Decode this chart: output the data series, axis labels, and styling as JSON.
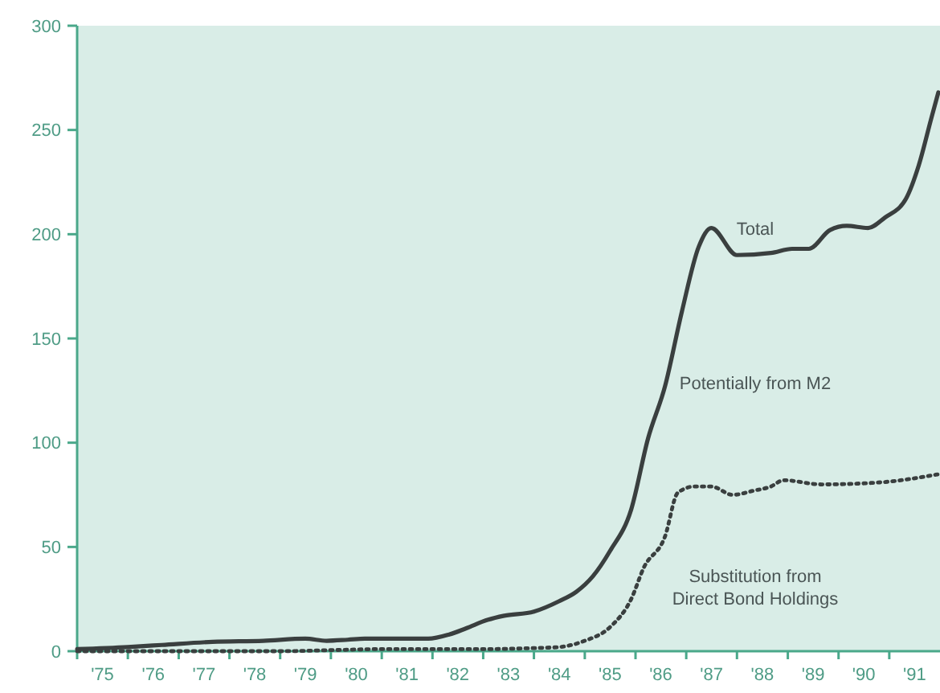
{
  "chart_data": {
    "type": "line",
    "xlim": [
      "1975",
      "1992"
    ],
    "ylim": [
      0,
      300
    ],
    "yticks": [
      0,
      50,
      100,
      150,
      200,
      250,
      300
    ],
    "xticks": [
      {
        "value": "1975",
        "label": null
      },
      {
        "value": "1975-07-02",
        "label": "'75"
      },
      {
        "value": "1976",
        "label": null
      },
      {
        "value": "1976-07-02",
        "label": "'76"
      },
      {
        "value": "1977",
        "label": null
      },
      {
        "value": "1977-07-02",
        "label": "'77"
      },
      {
        "value": "1978",
        "label": null
      },
      {
        "value": "1978-07-02",
        "label": "'78"
      },
      {
        "value": "1979",
        "label": null
      },
      {
        "value": "1979-07-02",
        "label": "'79"
      },
      {
        "value": "1980",
        "label": null
      },
      {
        "value": "1980-07-02",
        "label": "'80"
      },
      {
        "value": "1981",
        "label": null
      },
      {
        "value": "1981-07-02",
        "label": "'81"
      },
      {
        "value": "1982",
        "label": null
      },
      {
        "value": "1982-07-02",
        "label": "'82"
      },
      {
        "value": "1983",
        "label": null
      },
      {
        "value": "1983-07-02",
        "label": "'83"
      },
      {
        "value": "1984",
        "label": null
      },
      {
        "value": "1984-07-02",
        "label": "'84"
      },
      {
        "value": "1985",
        "label": null
      },
      {
        "value": "1985-07-02",
        "label": "'85"
      },
      {
        "value": "1986",
        "label": null
      },
      {
        "value": "1986-07-02",
        "label": "'86"
      },
      {
        "value": "1987",
        "label": null
      },
      {
        "value": "1987-07-02",
        "label": "'87"
      },
      {
        "value": "1988",
        "label": null
      },
      {
        "value": "1988-07-02",
        "label": "'88"
      },
      {
        "value": "1989",
        "label": null
      },
      {
        "value": "1989-07-02",
        "label": "'89"
      },
      {
        "value": "1990",
        "label": null
      },
      {
        "value": "1990-07-02",
        "label": "'90"
      },
      {
        "value": "1991",
        "label": null
      },
      {
        "value": "1991-07-02",
        "label": "'91"
      }
    ],
    "grid": false,
    "legend": false,
    "series": [
      {
        "name": "Total",
        "color": "#3a3f3f",
        "line_style": "solid",
        "x": [
          "1975-01",
          "1976-01",
          "1976-09",
          "1977-09",
          "1978-09",
          "1979-07",
          "1979-12",
          "1980-05",
          "1980-09",
          "1981-05",
          "1981-12",
          "1982-05",
          "1982-09",
          "1983-02",
          "1983-06",
          "1984-01",
          "1984-07",
          "1984-11",
          "1985-03",
          "1985-07",
          "1985-12",
          "1986-04",
          "1986-08",
          "1986-12",
          "1987-04",
          "1987-07",
          "1988-01",
          "1988-09",
          "1989-02",
          "1989-06",
          "1989-11",
          "1990-03",
          "1990-08",
          "1990-12",
          "1991-05",
          "1991-08",
          "1991-11",
          "1991-12-20"
        ],
        "values": [
          1,
          2,
          3,
          4.5,
          5,
          6,
          5,
          5.5,
          6,
          6,
          6,
          8,
          11,
          15,
          17,
          19,
          24,
          28.5,
          36,
          48,
          68,
          102,
          127,
          163,
          194,
          203,
          190,
          191,
          193,
          193,
          202,
          204,
          203,
          208,
          217,
          233,
          256,
          268
        ]
      },
      {
        "name": "Substitution from Direct Bond Holdings",
        "color": "#3a3f3f",
        "line_style": "dotted",
        "x": [
          "1975-01",
          "1977-01",
          "1979-01",
          "1980-01",
          "1981-01",
          "1982-01",
          "1983-01",
          "1984-01",
          "1984-07",
          "1985-01",
          "1985-07",
          "1985-12",
          "1986-03",
          "1986-08",
          "1986-11",
          "1987-03",
          "1987-07",
          "1987-12",
          "1988-05",
          "1988-09",
          "1988-12",
          "1989-09",
          "1990-11",
          "1991-12-31"
        ],
        "values": [
          0,
          0,
          0,
          0.5,
          1,
          1,
          1,
          1.5,
          2,
          5,
          11.5,
          25,
          40,
          55,
          76,
          79,
          79,
          75,
          77,
          79,
          82,
          80,
          81,
          85
        ]
      }
    ],
    "annotations": [
      "Potentially from M2"
    ]
  }
}
